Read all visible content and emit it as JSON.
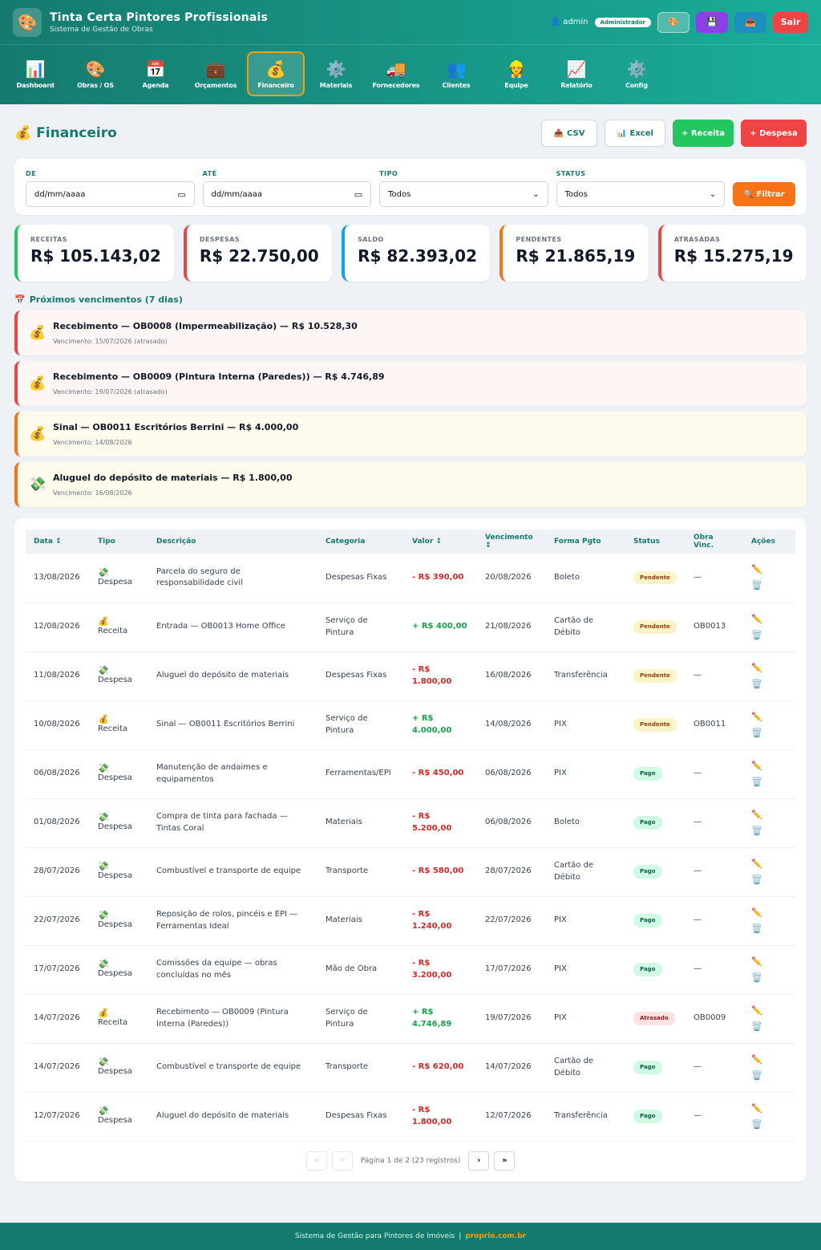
{
  "app": {
    "title": "Tinta Certa Pintores Profissionais",
    "subtitle": "Sistema de Gestão de Obras",
    "logo_icon": "🎨"
  },
  "user": {
    "name": "admin",
    "role": "Administrador",
    "icon": "👤"
  },
  "top_buttons": {
    "theme_icon": "🎨",
    "save_icon": "💾",
    "upload_icon": "📤",
    "logout_label": "Sair"
  },
  "nav": [
    {
      "icon": "📊",
      "label": "Dashboard"
    },
    {
      "icon": "🎨",
      "label": "Obras / OS"
    },
    {
      "icon": "📅",
      "label": "Agenda"
    },
    {
      "icon": "💼",
      "label": "Orçamentos"
    },
    {
      "icon": "💰",
      "label": "Financeiro"
    },
    {
      "icon": "⚙️",
      "label": "Materiais"
    },
    {
      "icon": "🚚",
      "label": "Fornecedores"
    },
    {
      "icon": "👥",
      "label": "Clientes"
    },
    {
      "icon": "👷",
      "label": "Equipe"
    },
    {
      "icon": "📈",
      "label": "Relatório"
    },
    {
      "icon": "⚙️",
      "label": "Config"
    }
  ],
  "page": {
    "icon": "💰",
    "title": "Financeiro",
    "csv_icon": "📤",
    "csv_label": "CSV",
    "excel_icon": "📊",
    "excel_label": "Excel",
    "receita_label": "+ Receita",
    "despesa_label": "+ Despesa"
  },
  "filters": {
    "de_label": "DE",
    "de_value": "dd/mm/aaaa",
    "ate_label": "ATÉ",
    "ate_value": "dd/mm/aaaa",
    "tipo_label": "TIPO",
    "tipo_value": "Todos",
    "status_label": "STATUS",
    "status_value": "Todos",
    "filter_label": "🔍 Filtrar"
  },
  "stats": [
    {
      "label": "RECEITAS",
      "value": "R$ 105.143,02",
      "color": "#22c55e"
    },
    {
      "label": "DESPESAS",
      "value": "R$ 22.750,00",
      "color": "#ef4444"
    },
    {
      "label": "SALDO",
      "value": "R$ 82.393,02",
      "color": "#0ea5e9"
    },
    {
      "label": "PENDENTES",
      "value": "R$ 21.865,19",
      "color": "#f97316"
    },
    {
      "label": "ATRASADAS",
      "value": "R$ 15.275,19",
      "color": "#ef4444"
    }
  ],
  "upcoming": {
    "icon": "📅",
    "title": "Próximos vencimentos (7 dias)",
    "items": [
      {
        "icon": "💰",
        "text": "Recebimento — OB0008 (Impermeabilização) — R$ 10.528,30",
        "sub": "Vencimento: 15/07/2026 (atrasado)",
        "border": "#ef4444",
        "bg": "#fdf6f5"
      },
      {
        "icon": "💰",
        "text": "Recebimento — OB0009 (Pintura Interna (Paredes)) — R$ 4.746,89",
        "sub": "Vencimento: 19/07/2026 (atrasado)",
        "border": "#ef4444",
        "bg": "#fdf6f5"
      },
      {
        "icon": "💰",
        "text": "Sinal — OB0011 Escritórios Berrini — R$ 4.000,00",
        "sub": "Vencimento: 14/08/2026",
        "border": "#f97316",
        "bg": "#fefbec"
      },
      {
        "icon": "💸",
        "text": "Aluguel do depósito de materiais — R$ 1.800,00",
        "sub": "Vencimento: 16/08/2026",
        "border": "#f97316",
        "bg": "#fefbec"
      }
    ]
  },
  "table": {
    "headers": [
      "Data ↕",
      "Tipo",
      "Descrição",
      "Categoria",
      "Valor ↕",
      "Vencimento ↕",
      "Forma Pgto",
      "Status",
      "Obra Vinc.",
      "Ações"
    ],
    "rows": [
      {
        "data": "13/08/2026",
        "tipo_icon": "💸",
        "tipo": "Despesa",
        "desc": "Parcela do seguro de responsabilidade civil",
        "cat": "Despesas Fixas",
        "valor": "- R$ 390,00",
        "sign": "neg",
        "venc": "20/08/2026",
        "forma": "Boleto",
        "status": "Pendente",
        "st": "pend",
        "obra": "—"
      },
      {
        "data": "12/08/2026",
        "tipo_icon": "💰",
        "tipo": "Receita",
        "desc": "Entrada — OB0013 Home Office",
        "cat": "Serviço de Pintura",
        "valor": "+ R$ 400,00",
        "sign": "pos",
        "venc": "21/08/2026",
        "forma": "Cartão de Débito",
        "status": "Pendente",
        "st": "pend",
        "obra": "OB0013"
      },
      {
        "data": "11/08/2026",
        "tipo_icon": "💸",
        "tipo": "Despesa",
        "desc": "Aluguel do depósito de materiais",
        "cat": "Despesas Fixas",
        "valor": "- R$ 1.800,00",
        "sign": "neg",
        "venc": "16/08/2026",
        "forma": "Transferência",
        "status": "Pendente",
        "st": "pend",
        "obra": "—"
      },
      {
        "data": "10/08/2026",
        "tipo_icon": "💰",
        "tipo": "Receita",
        "desc": "Sinal — OB0011 Escritórios Berrini",
        "cat": "Serviço de Pintura",
        "valor": "+ R$ 4.000,00",
        "sign": "pos",
        "venc": "14/08/2026",
        "forma": "PIX",
        "status": "Pendente",
        "st": "pend",
        "obra": "OB0011"
      },
      {
        "data": "06/08/2026",
        "tipo_icon": "💸",
        "tipo": "Despesa",
        "desc": "Manutenção de andaimes e equipamentos",
        "cat": "Ferramentas/EPI",
        "valor": "- R$ 450,00",
        "sign": "neg",
        "venc": "06/08/2026",
        "forma": "PIX",
        "status": "Pago",
        "st": "pago",
        "obra": "—"
      },
      {
        "data": "01/08/2026",
        "tipo_icon": "💸",
        "tipo": "Despesa",
        "desc": "Compra de tinta para fachada — Tintas Coral",
        "cat": "Materiais",
        "valor": "- R$ 5.200,00",
        "sign": "neg",
        "venc": "06/08/2026",
        "forma": "Boleto",
        "status": "Pago",
        "st": "pago",
        "obra": "—"
      },
      {
        "data": "28/07/2026",
        "tipo_icon": "💸",
        "tipo": "Despesa",
        "desc": "Combustível e transporte de equipe",
        "cat": "Transporte",
        "valor": "- R$ 580,00",
        "sign": "neg",
        "venc": "28/07/2026",
        "forma": "Cartão de Débito",
        "status": "Pago",
        "st": "pago",
        "obra": "—"
      },
      {
        "data": "22/07/2026",
        "tipo_icon": "💸",
        "tipo": "Despesa",
        "desc": "Reposição de rolos, pincéis e EPI — Ferramentas Ideal",
        "cat": "Materiais",
        "valor": "- R$ 1.240,00",
        "sign": "neg",
        "venc": "22/07/2026",
        "forma": "PIX",
        "status": "Pago",
        "st": "pago",
        "obra": "—"
      },
      {
        "data": "17/07/2026",
        "tipo_icon": "💸",
        "tipo": "Despesa",
        "desc": "Comissões da equipe — obras concluídas no mês",
        "cat": "Mão de Obra",
        "valor": "- R$ 3.200,00",
        "sign": "neg",
        "venc": "17/07/2026",
        "forma": "PIX",
        "status": "Pago",
        "st": "pago",
        "obra": "—"
      },
      {
        "data": "14/07/2026",
        "tipo_icon": "💰",
        "tipo": "Receita",
        "desc": "Recebimento — OB0009 (Pintura Interna (Paredes))",
        "cat": "Serviço de Pintura",
        "valor": "+ R$ 4.746,89",
        "sign": "pos",
        "venc": "19/07/2026",
        "forma": "PIX",
        "status": "Atrasado",
        "st": "atr",
        "obra": "OB0009"
      },
      {
        "data": "14/07/2026",
        "tipo_icon": "💸",
        "tipo": "Despesa",
        "desc": "Combustível e transporte de equipe",
        "cat": "Transporte",
        "valor": "- R$ 620,00",
        "sign": "neg",
        "venc": "14/07/2026",
        "forma": "Cartão de Débito",
        "status": "Pago",
        "st": "pago",
        "obra": "—"
      },
      {
        "data": "12/07/2026",
        "tipo_icon": "💸",
        "tipo": "Despesa",
        "desc": "Aluguel do depósito de materiais",
        "cat": "Despesas Fixas",
        "valor": "- R$ 1.800,00",
        "sign": "neg",
        "venc": "12/07/2026",
        "forma": "Transferência",
        "status": "Pago",
        "st": "pago",
        "obra": "—"
      }
    ],
    "edit_icon": "✏️",
    "delete_icon": "🗑️"
  },
  "pagination": {
    "first": "«",
    "prev": "‹",
    "info": "Página 1 de 2 (23 registros)",
    "next": "›",
    "last": "»"
  },
  "footer": {
    "text": "Sistema de Gestão para Pintores de Imóveis",
    "sep": "|",
    "link": "proprio.com.br"
  }
}
